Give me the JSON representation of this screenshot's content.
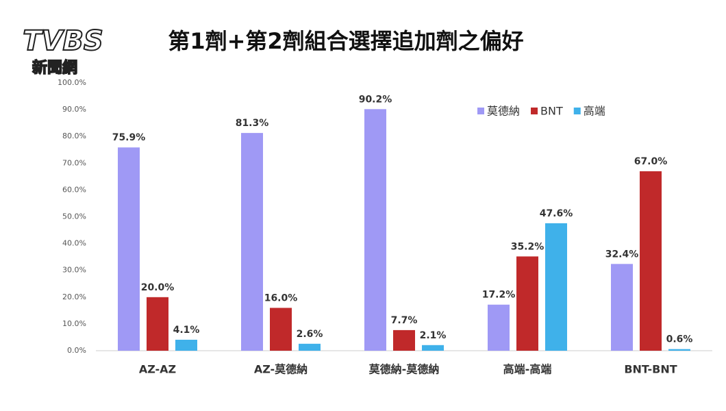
{
  "logo": {
    "brand": "TVBS",
    "name": "新聞網"
  },
  "chart_data": {
    "type": "bar",
    "title": "第1劑+第2劑組合選擇追加劑之偏好",
    "categories": [
      "AZ-AZ",
      "AZ-莫德納",
      "莫德納-莫德納",
      "高端-高端",
      "BNT-BNT"
    ],
    "series": [
      {
        "name": "莫德納",
        "color": "#9f99f5",
        "values": [
          75.9,
          81.3,
          90.2,
          17.2,
          32.4
        ],
        "value_labels": [
          "75.9%",
          "81.3%",
          "90.2%",
          "17.2%",
          "32.4%"
        ]
      },
      {
        "name": "BNT",
        "color": "#c0292a",
        "values": [
          20.0,
          16.0,
          7.7,
          35.2,
          67.0
        ],
        "value_labels": [
          "20.0%",
          "16.0%",
          "7.7%",
          "35.2%",
          "67.0%"
        ]
      },
      {
        "name": "高端",
        "color": "#3fb1ea",
        "values": [
          4.1,
          2.6,
          2.1,
          47.6,
          0.6
        ],
        "value_labels": [
          "4.1%",
          "2.6%",
          "2.1%",
          "47.6%",
          "0.6%"
        ]
      }
    ],
    "ylim": [
      0,
      100
    ],
    "yticks": [
      {
        "value": 0,
        "label": "0.0%"
      },
      {
        "value": 10,
        "label": "10.0%"
      },
      {
        "value": 20,
        "label": "20.0%"
      },
      {
        "value": 30,
        "label": "30.0%"
      },
      {
        "value": 40,
        "label": "40.0%"
      },
      {
        "value": 50,
        "label": "50.0%"
      },
      {
        "value": 60,
        "label": "60.0%"
      },
      {
        "value": 70,
        "label": "70.0%"
      },
      {
        "value": 80,
        "label": "80.0%"
      },
      {
        "value": 90,
        "label": "90.0%"
      },
      {
        "value": 100,
        "label": "100.0%"
      }
    ],
    "legend": "top-right",
    "grid": false
  }
}
